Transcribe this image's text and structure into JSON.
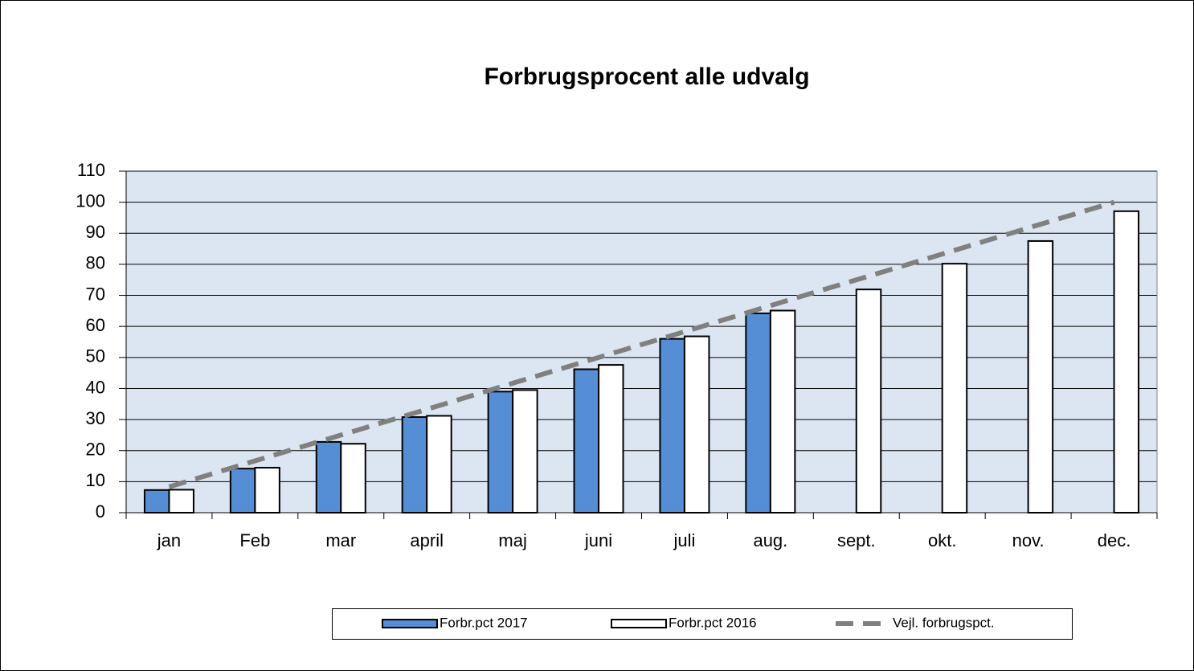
{
  "chart_data": {
    "type": "bar",
    "title": "Forbrugsprocent alle udvalg",
    "categories": [
      "jan",
      "Feb",
      "mar",
      "april",
      "maj",
      "juni",
      "juli",
      "aug.",
      "sept.",
      "okt.",
      "nov.",
      "dec."
    ],
    "series": [
      {
        "name": "Forbr.pct 2017",
        "type": "bar",
        "color": "#558ed5",
        "values": [
          7.3,
          14.2,
          22.8,
          30.8,
          39.0,
          46.2,
          56.0,
          64.2,
          null,
          null,
          null,
          null
        ]
      },
      {
        "name": "Forbr.pct 2016",
        "type": "bar",
        "color": "#ffffff",
        "values": [
          7.4,
          14.5,
          22.2,
          31.2,
          39.5,
          47.6,
          56.8,
          65.1,
          71.9,
          80.2,
          87.5,
          97.1
        ]
      },
      {
        "name": "Vejl. forbrugspct.",
        "type": "line",
        "color": "#808080",
        "values": [
          8.3,
          16.7,
          25.0,
          33.3,
          41.7,
          50.0,
          58.3,
          66.7,
          75.0,
          83.3,
          91.7,
          100.0
        ]
      }
    ],
    "ylim": [
      0,
      110
    ],
    "yticks": [
      0,
      10,
      20,
      30,
      40,
      50,
      60,
      70,
      80,
      90,
      100,
      110
    ],
    "grid": true,
    "legend": "bottom"
  }
}
